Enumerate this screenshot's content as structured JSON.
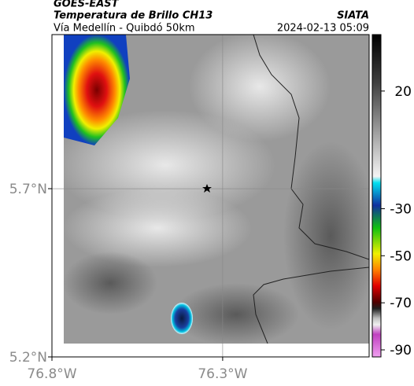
{
  "header": {
    "satellite": "GOES-EAST",
    "product": "Temperatura de Brillo CH13",
    "source": "SIATA",
    "region": "Vía Medellín - Quibdó 50km",
    "timestamp": "2024-02-13 05:09"
  },
  "map": {
    "lat_lim": [
      5.2,
      6.158
    ],
    "lon_lim": [
      -76.8,
      -75.871
    ],
    "lat_ticks": [
      {
        "value": 5.7,
        "label": "5.7°N"
      },
      {
        "value": 5.2,
        "label": "5.2°N"
      }
    ],
    "lon_ticks": [
      {
        "value": -76.8,
        "label": "76.8°W"
      },
      {
        "value": -76.3,
        "label": "76.3°W"
      }
    ],
    "grid": true
  },
  "colorbar": {
    "lim": [
      -93,
      44
    ],
    "ticks": [
      20,
      -30,
      -50,
      -70,
      -90
    ]
  }
}
